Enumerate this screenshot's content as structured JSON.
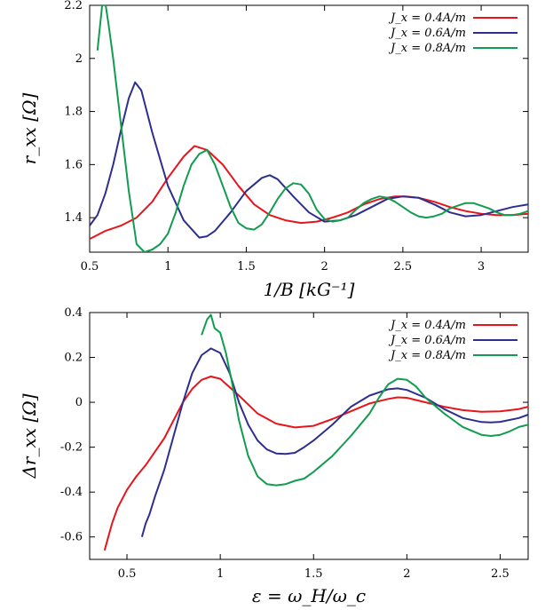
{
  "chart_data": [
    {
      "type": "line",
      "xlabel": "1/B [kG⁻¹]",
      "ylabel": "r_xx [Ω]",
      "xlim": [
        0.5,
        3.3
      ],
      "ylim": [
        1.27,
        2.2
      ],
      "xticks": [
        0.5,
        1,
        1.5,
        2,
        2.5,
        3
      ],
      "xtick_labels": [
        "0.5",
        "1",
        "1.5",
        "2",
        "2.5",
        "3"
      ],
      "yticks": [
        1.4,
        1.6,
        1.8,
        2,
        2.2
      ],
      "ytick_labels": [
        "1.4",
        "1.6",
        "1.8",
        "2",
        "2.2"
      ],
      "grid": false,
      "legend_position": "top-right",
      "series": [
        {
          "name": "J_x = 0.4A/m",
          "color": "#e8141b",
          "x": [
            0.5,
            0.6,
            0.7,
            0.8,
            0.9,
            1.0,
            1.1,
            1.17,
            1.25,
            1.35,
            1.45,
            1.55,
            1.65,
            1.75,
            1.85,
            1.95,
            2.05,
            2.15,
            2.25,
            2.35,
            2.45,
            2.52,
            2.6,
            2.7,
            2.8,
            2.9,
            3.0,
            3.1,
            3.2,
            3.3
          ],
          "y": [
            1.32,
            1.35,
            1.37,
            1.4,
            1.46,
            1.55,
            1.63,
            1.67,
            1.655,
            1.6,
            1.52,
            1.45,
            1.41,
            1.39,
            1.38,
            1.385,
            1.4,
            1.42,
            1.45,
            1.47,
            1.48,
            1.48,
            1.475,
            1.46,
            1.44,
            1.425,
            1.415,
            1.41,
            1.41,
            1.415
          ]
        },
        {
          "name": "J_x = 0.6A/m",
          "color": "#2e2e8f",
          "x": [
            0.5,
            0.55,
            0.6,
            0.65,
            0.7,
            0.75,
            0.79,
            0.83,
            0.9,
            1.0,
            1.1,
            1.2,
            1.25,
            1.3,
            1.4,
            1.5,
            1.6,
            1.65,
            1.7,
            1.8,
            1.9,
            2.0,
            2.1,
            2.2,
            2.3,
            2.4,
            2.5,
            2.6,
            2.7,
            2.8,
            2.9,
            3.0,
            3.1,
            3.2,
            3.3
          ],
          "y": [
            1.37,
            1.41,
            1.49,
            1.6,
            1.73,
            1.85,
            1.91,
            1.88,
            1.72,
            1.52,
            1.39,
            1.325,
            1.33,
            1.35,
            1.42,
            1.5,
            1.55,
            1.56,
            1.545,
            1.48,
            1.42,
            1.385,
            1.39,
            1.41,
            1.44,
            1.47,
            1.48,
            1.475,
            1.45,
            1.42,
            1.405,
            1.41,
            1.425,
            1.44,
            1.45
          ]
        },
        {
          "name": "J_x = 0.8A/m",
          "color": "#119c4f",
          "x": [
            0.55,
            0.58,
            0.6,
            0.62,
            0.65,
            0.7,
            0.75,
            0.8,
            0.85,
            0.9,
            0.95,
            1.0,
            1.05,
            1.1,
            1.15,
            1.2,
            1.25,
            1.3,
            1.35,
            1.4,
            1.45,
            1.5,
            1.55,
            1.6,
            1.65,
            1.7,
            1.75,
            1.8,
            1.85,
            1.9,
            1.95,
            2.0,
            2.05,
            2.1,
            2.15,
            2.2,
            2.25,
            2.3,
            2.35,
            2.4,
            2.45,
            2.5,
            2.55,
            2.6,
            2.65,
            2.7,
            2.75,
            2.8,
            2.85,
            2.9,
            2.95,
            3.0,
            3.05,
            3.1,
            3.15,
            3.2,
            3.25,
            3.3
          ],
          "y": [
            2.03,
            2.2,
            2.21,
            2.13,
            2.0,
            1.75,
            1.5,
            1.3,
            1.27,
            1.28,
            1.3,
            1.34,
            1.42,
            1.52,
            1.6,
            1.64,
            1.655,
            1.6,
            1.52,
            1.44,
            1.38,
            1.36,
            1.355,
            1.375,
            1.42,
            1.47,
            1.51,
            1.53,
            1.525,
            1.49,
            1.43,
            1.395,
            1.385,
            1.39,
            1.4,
            1.43,
            1.455,
            1.47,
            1.48,
            1.475,
            1.46,
            1.44,
            1.42,
            1.405,
            1.4,
            1.405,
            1.415,
            1.435,
            1.445,
            1.455,
            1.455,
            1.445,
            1.435,
            1.42,
            1.41,
            1.41,
            1.415,
            1.425
          ]
        }
      ]
    },
    {
      "type": "line",
      "xlabel": "ε = ω_H/ω_c",
      "ylabel": "Δr_xx [Ω]",
      "xlim": [
        0.3,
        2.65
      ],
      "ylim": [
        -0.7,
        0.4
      ],
      "xticks": [
        0.5,
        1,
        1.5,
        2,
        2.5
      ],
      "xtick_labels": [
        "0.5",
        "1",
        "1.5",
        "2",
        "2.5"
      ],
      "yticks": [
        -0.6,
        -0.4,
        -0.2,
        0,
        0.2,
        0.4
      ],
      "ytick_labels": [
        "-0.6",
        "-0.4",
        "-0.2",
        "0",
        "0.2",
        "0.4"
      ],
      "grid": false,
      "legend_position": "top-right",
      "series": [
        {
          "name": "J_x = 0.4A/m",
          "color": "#e8141b",
          "x": [
            0.38,
            0.4,
            0.42,
            0.45,
            0.5,
            0.55,
            0.6,
            0.7,
            0.8,
            0.85,
            0.9,
            0.95,
            1.0,
            1.1,
            1.2,
            1.3,
            1.4,
            1.5,
            1.6,
            1.7,
            1.8,
            1.9,
            1.95,
            2.0,
            2.1,
            2.2,
            2.3,
            2.4,
            2.5,
            2.6,
            2.65
          ],
          "y": [
            -0.66,
            -0.6,
            -0.54,
            -0.47,
            -0.39,
            -0.33,
            -0.28,
            -0.16,
            0.0,
            0.06,
            0.1,
            0.115,
            0.105,
            0.03,
            -0.05,
            -0.095,
            -0.112,
            -0.105,
            -0.075,
            -0.04,
            -0.005,
            0.015,
            0.022,
            0.02,
            0.0,
            -0.02,
            -0.035,
            -0.042,
            -0.04,
            -0.03,
            -0.02
          ]
        },
        {
          "name": "J_x = 0.6A/m",
          "color": "#2e2e8f",
          "x": [
            0.58,
            0.6,
            0.62,
            0.65,
            0.7,
            0.75,
            0.8,
            0.85,
            0.9,
            0.95,
            1.0,
            1.05,
            1.1,
            1.15,
            1.2,
            1.25,
            1.3,
            1.35,
            1.4,
            1.45,
            1.5,
            1.6,
            1.7,
            1.8,
            1.9,
            1.95,
            2.0,
            2.1,
            2.2,
            2.3,
            2.4,
            2.45,
            2.5,
            2.6,
            2.65
          ],
          "y": [
            -0.6,
            -0.54,
            -0.5,
            -0.42,
            -0.3,
            -0.15,
            0.0,
            0.13,
            0.21,
            0.24,
            0.22,
            0.13,
            0.0,
            -0.1,
            -0.17,
            -0.21,
            -0.228,
            -0.23,
            -0.225,
            -0.2,
            -0.17,
            -0.1,
            -0.02,
            0.03,
            0.058,
            0.062,
            0.055,
            0.02,
            -0.03,
            -0.07,
            -0.088,
            -0.09,
            -0.087,
            -0.07,
            -0.055
          ]
        },
        {
          "name": "J_x = 0.8A/m",
          "color": "#119c4f",
          "x": [
            0.9,
            0.93,
            0.95,
            0.97,
            1.0,
            1.03,
            1.06,
            1.1,
            1.15,
            1.2,
            1.25,
            1.3,
            1.35,
            1.4,
            1.45,
            1.5,
            1.6,
            1.7,
            1.8,
            1.85,
            1.9,
            1.95,
            2.0,
            2.05,
            2.1,
            2.2,
            2.3,
            2.4,
            2.45,
            2.5,
            2.55,
            2.6,
            2.65
          ],
          "y": [
            0.3,
            0.37,
            0.39,
            0.33,
            0.31,
            0.22,
            0.1,
            -0.08,
            -0.24,
            -0.33,
            -0.365,
            -0.37,
            -0.365,
            -0.35,
            -0.34,
            -0.31,
            -0.24,
            -0.15,
            -0.05,
            0.02,
            0.08,
            0.105,
            0.1,
            0.07,
            0.02,
            -0.05,
            -0.11,
            -0.145,
            -0.15,
            -0.145,
            -0.13,
            -0.11,
            -0.1
          ]
        }
      ]
    }
  ]
}
